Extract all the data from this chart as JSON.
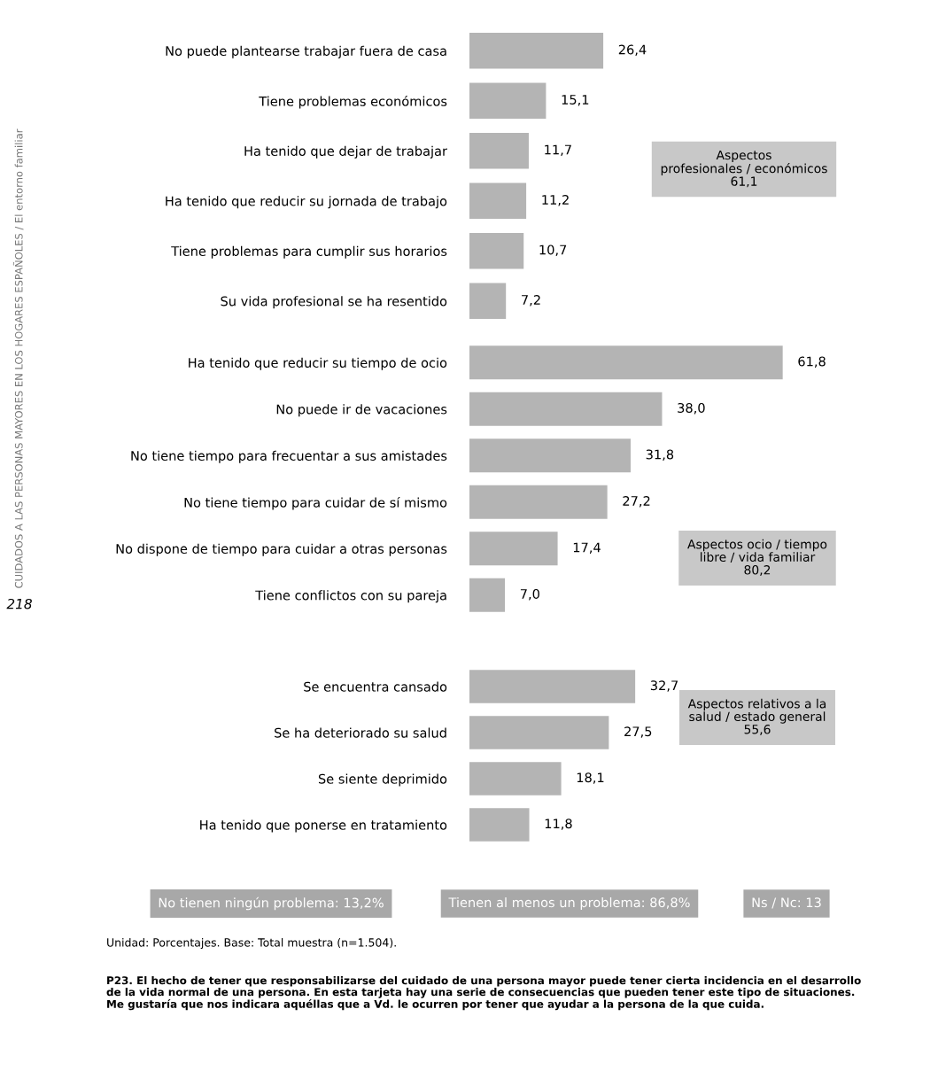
{
  "chart_data": [
    {
      "type": "bar",
      "orientation": "horizontal",
      "color": "#b4b4b4",
      "tick_labels": "y",
      "categories": [
        "No puede plantearse trabajar fuera de casa",
        "Tiene problemas económicos",
        "Ha tenido que dejar de trabajar",
        "Ha tenido que reducir su jornada de trabajo",
        "Tiene problemas para cumplir sus horarios",
        "Su vida profesional se ha resentido"
      ],
      "values": [
        26.4,
        15.1,
        11.7,
        11.2,
        10.7,
        7.2
      ],
      "value_labels": [
        "26,4",
        "15,1",
        "11,7",
        "11,2",
        "10,7",
        "7,2"
      ],
      "annotations": [
        "Aspectos\nprofesionales / económicos\n61,1"
      ]
    },
    {
      "type": "bar",
      "orientation": "horizontal",
      "color": "#b4b4b4",
      "tick_labels": "y",
      "categories": [
        "Ha tenido que reducir su tiempo de ocio",
        "No puede ir de vacaciones",
        "No tiene tiempo para frecuentar a sus amistades",
        "No tiene tiempo para cuidar de sí mismo",
        "No dispone de tiempo para cuidar a otras personas",
        "Tiene conflictos con su pareja"
      ],
      "values": [
        61.8,
        38.0,
        31.8,
        27.2,
        17.4,
        7.0
      ],
      "value_labels": [
        "61,8",
        "38,0",
        "31,8",
        "27,2",
        "17,4",
        "7,0"
      ],
      "annotations": [
        "Aspectos ocio / tiempo\nlibre / vida familiar\n80,2"
      ]
    },
    {
      "type": "bar",
      "orientation": "horizontal",
      "color": "#b4b4b4",
      "tick_labels": "y",
      "categories": [
        "Se encuentra cansado",
        "Se ha deteriorado su salud",
        "Se siente deprimido",
        "Ha tenido que ponerse en tratamiento"
      ],
      "values": [
        32.7,
        27.5,
        18.1,
        11.8
      ],
      "value_labels": [
        "32,7",
        "27,5",
        "18,1",
        "11,8"
      ],
      "annotations": [
        "Aspectos relativos a la\nsalud / estado general\n55,6"
      ]
    },
    {
      "type": "other",
      "annotations": [
        "No tienen ningún problema: 13,2%",
        "Tienen al menos un problema: 86,8%",
        "Ns / Nc: 13",
        "Unidad: Porcentajes. Base: Total muestra (n=1.504).",
        "P23. El hecho de tener que responsabilizarse del cuidado de una persona mayor puede tener cierta incidencia en el desarrollo\nde la vida normal de una persona. En esta tarjeta hay una serie de consecuencias que pueden tener este tipo de situaciones.\nMe gustaría que nos indicara aquéllas que a Vd. le ocurren por tener que ayudar a la persona de la que cuida.",
        "CUIDADOS A LAS PERSONAS MAYORES EN LOS HOGARES ESPAÑOLES / El entorno familiar",
        "218"
      ]
    }
  ]
}
